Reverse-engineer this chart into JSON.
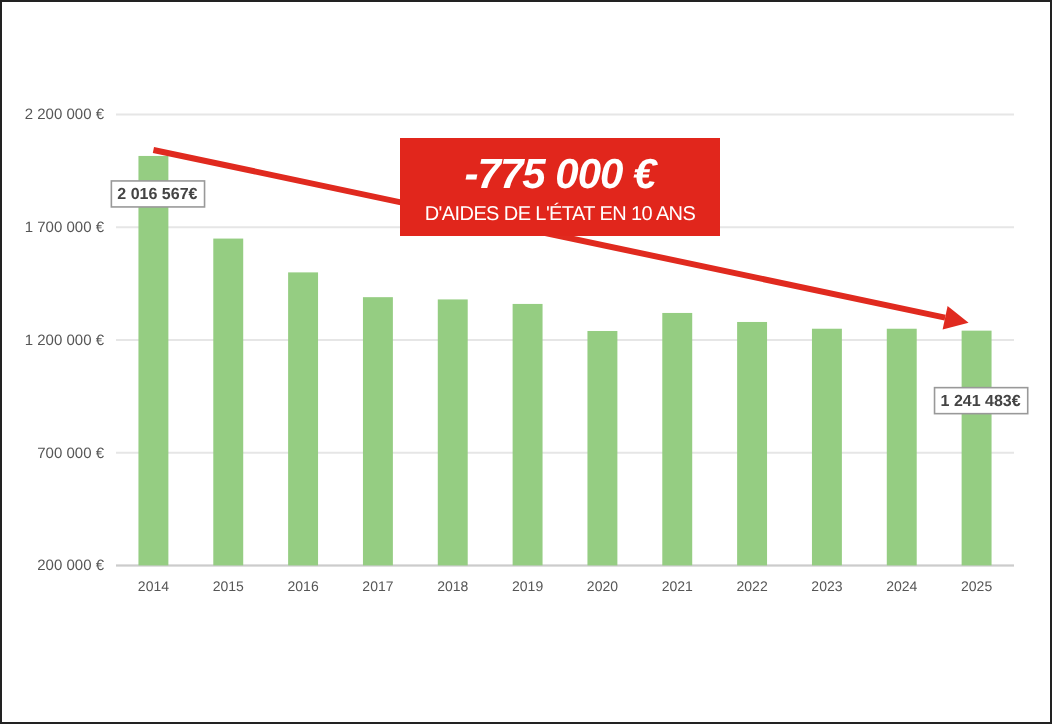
{
  "chart_data": {
    "type": "bar",
    "categories": [
      "2014",
      "2015",
      "2016",
      "2017",
      "2018",
      "2019",
      "2020",
      "2021",
      "2022",
      "2023",
      "2024",
      "2025"
    ],
    "values": [
      2016567,
      1650000,
      1500000,
      1390000,
      1380000,
      1360000,
      1240000,
      1320000,
      1280000,
      1250000,
      1250000,
      1241483
    ],
    "value_labels": [
      "2 016 567€",
      null,
      null,
      null,
      null,
      null,
      null,
      null,
      null,
      null,
      null,
      "1 241 483€"
    ],
    "color": "#95cd82",
    "ylim": [
      200000,
      2200000
    ],
    "yticks": [
      {
        "value": 200000,
        "label": "200 000 €"
      },
      {
        "value": 700000,
        "label": "700 000 €"
      },
      {
        "value": 1200000,
        "label": "1 200 000 €"
      },
      {
        "value": 1700000,
        "label": "1 700 000 €"
      },
      {
        "value": 2200000,
        "label": "2 200 000 €"
      }
    ],
    "grid": "y",
    "annotations": [
      "-775 000 €",
      "D'AIDES DE L'ÉTAT EN 10 ANS"
    ]
  }
}
